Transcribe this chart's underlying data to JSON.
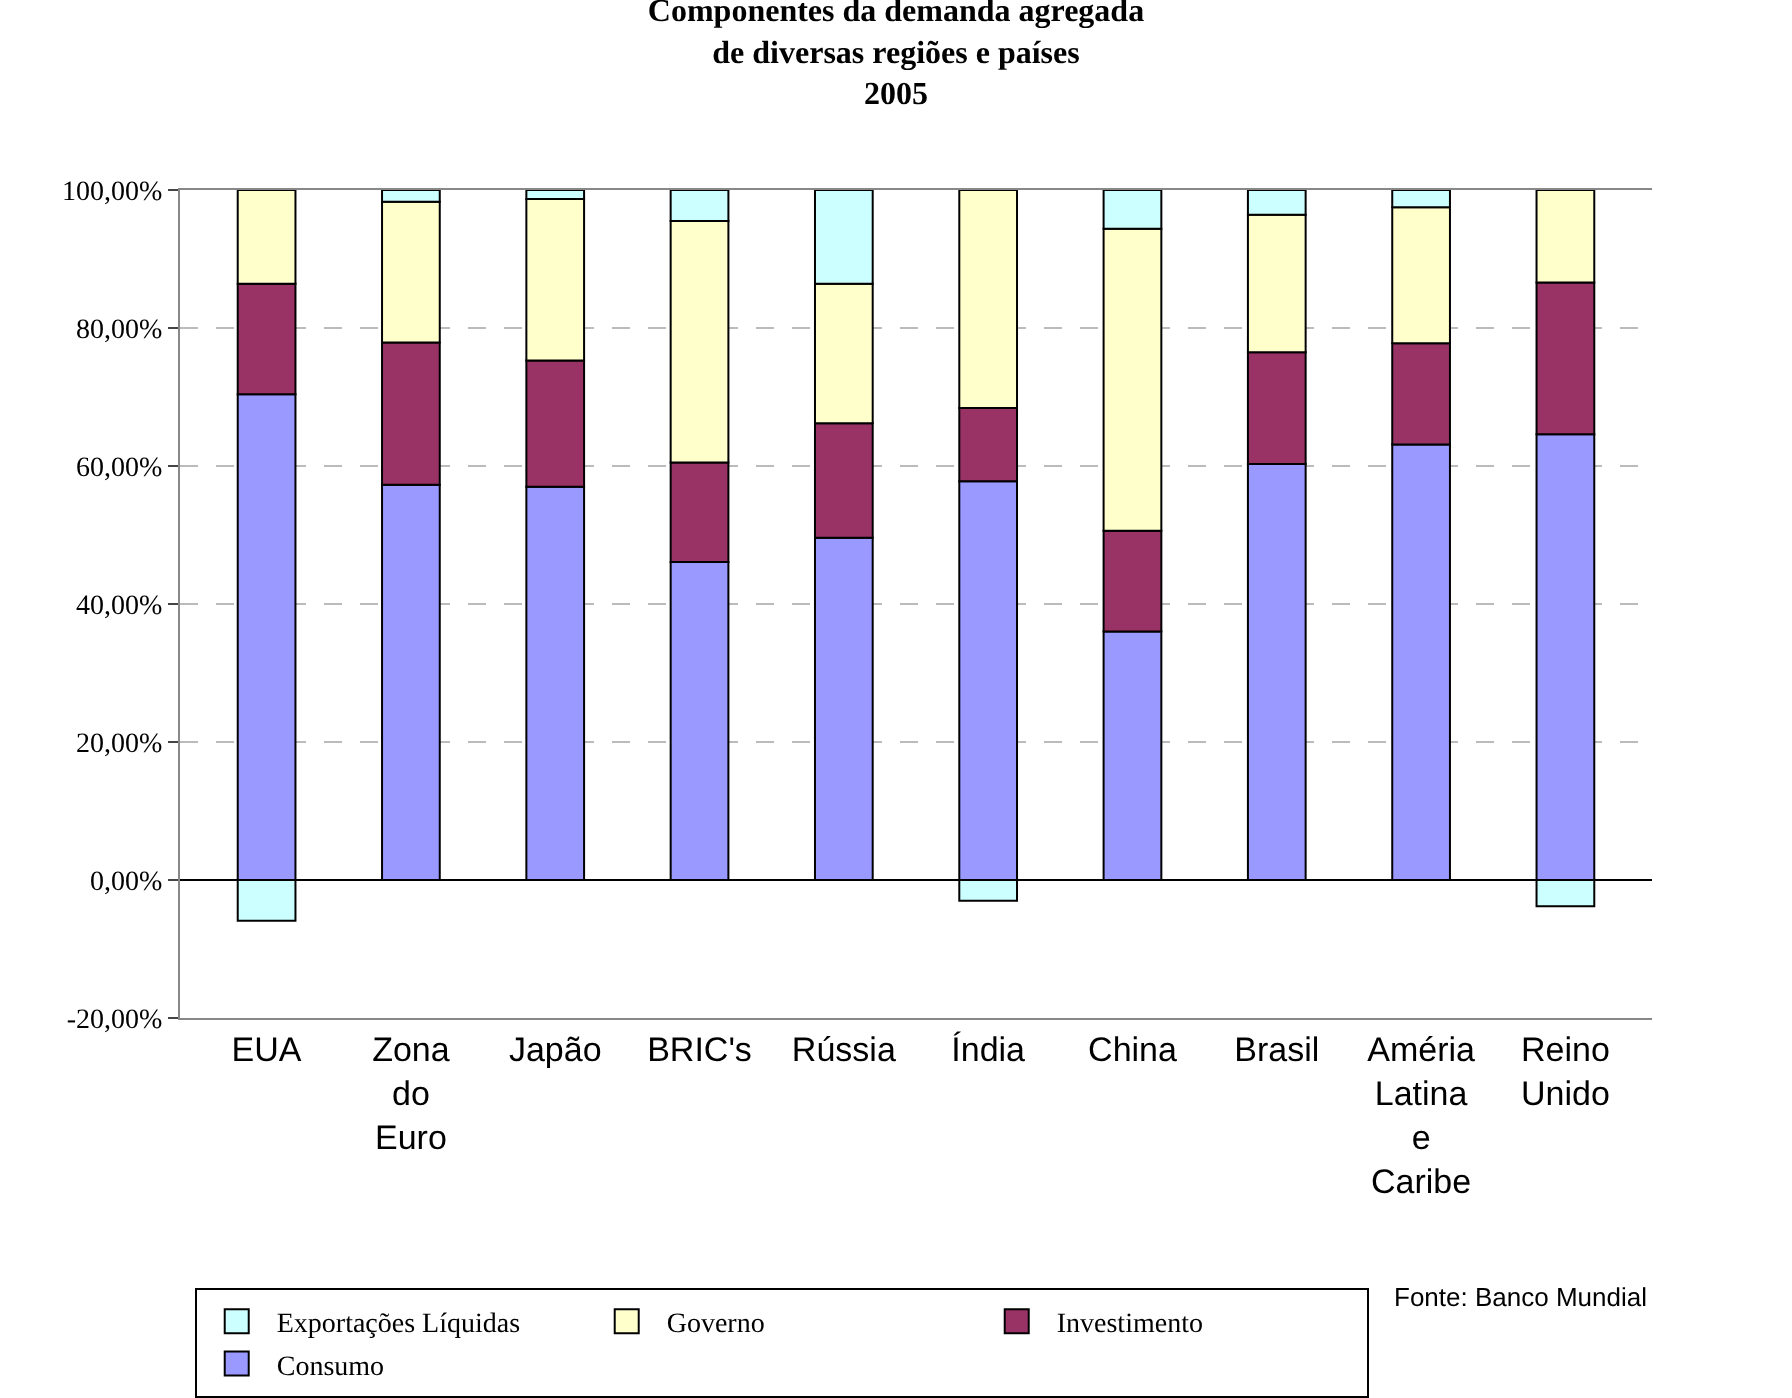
{
  "chart_data": {
    "type": "bar",
    "stacked": true,
    "title": "Componentes da demanda agregada\nde diversas regiões e países\n2005",
    "categories": [
      "EUA",
      "Zona do Euro",
      "Japão",
      "BRIC's",
      "Rússia",
      "Índia",
      "China",
      "Brasil",
      "Améria Latina e Caribe",
      "Reino Unido"
    ],
    "series": [
      {
        "name": "Consumo",
        "color": "#9999ff",
        "values": [
          70.4,
          57.3,
          57.0,
          46.1,
          49.6,
          57.8,
          36.0,
          60.3,
          63.1,
          64.6
        ]
      },
      {
        "name": "Investimento",
        "color": "#993366",
        "values": [
          16.0,
          20.6,
          18.3,
          14.4,
          16.6,
          10.6,
          14.6,
          16.2,
          14.7,
          22.0
        ]
      },
      {
        "name": "Governo",
        "color": "#ffffcc",
        "values": [
          13.6,
          20.4,
          23.4,
          35.0,
          20.2,
          31.6,
          43.8,
          19.9,
          19.7,
          13.4
        ]
      },
      {
        "name": "Exportações Líquidas",
        "color": "#ccffff",
        "values": [
          -5.9,
          1.7,
          1.3,
          4.5,
          13.6,
          -3.0,
          5.6,
          3.6,
          2.5,
          -3.8
        ]
      }
    ],
    "ylim": [
      -20,
      100
    ],
    "yticks": [
      {
        "value": -20,
        "label": "-20,00%"
      },
      {
        "value": 0,
        "label": "0,00%"
      },
      {
        "value": 20,
        "label": "20,00%"
      },
      {
        "value": 40,
        "label": "40,00%"
      },
      {
        "value": 60,
        "label": "60,00%"
      },
      {
        "value": 80,
        "label": "80,00%"
      },
      {
        "value": 100,
        "label": "100,00%"
      }
    ],
    "grid": "y",
    "legend": "bottom",
    "annotations": [
      "Fonte: Banco Mundial"
    ]
  }
}
